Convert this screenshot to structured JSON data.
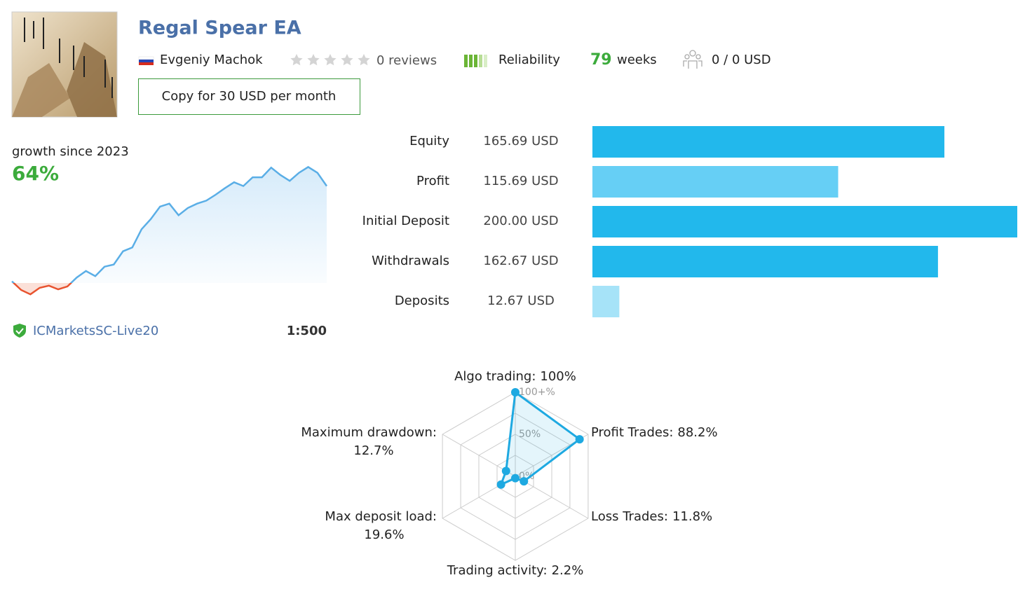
{
  "header": {
    "title": "Regal Spear EA",
    "author": "Evgeniy Machok",
    "reviews": "0 reviews",
    "reliability": "Reliability",
    "weeks_value": "79",
    "weeks_unit": "weeks",
    "subscribers": "0 / 0 USD",
    "button": "Copy for 30 USD per month"
  },
  "growth": {
    "label": "growth since 2023",
    "value": "64%",
    "broker": "ICMarketsSC-Live20",
    "leverage": "1:500"
  },
  "chart_data": [
    {
      "type": "line",
      "values": [
        2.8,
        -2.8,
        -5.6,
        -1.4,
        0,
        -2.4,
        -0.5,
        5.2,
        9.4,
        6.1,
        12.2,
        13.6,
        22.1,
        24.5,
        36.2,
        42.8,
        50.8,
        52.7,
        45.2,
        49.9,
        52.7,
        54.6,
        58.4,
        62.6,
        66.4,
        64,
        69.6,
        69.6,
        75.8,
        71.1,
        67.3,
        72.5,
        76.2,
        72.5,
        64
      ],
      "ylim": [
        -10,
        80
      ],
      "color": "#5aaee6",
      "negative_color": "#e8532f"
    },
    {
      "type": "barh",
      "categories": [
        "Equity",
        "Profit",
        "Initial Deposit",
        "Withdrawals",
        "Deposits"
      ],
      "values": [
        165.69,
        115.69,
        200.0,
        162.67,
        12.67
      ],
      "value_labels": [
        "165.69 USD",
        "115.69 USD",
        "200.00 USD",
        "162.67 USD",
        "12.67 USD"
      ],
      "colors": [
        "#22b8ec",
        "#66cff5",
        "#22b8ec",
        "#22b8ec",
        "#a6e3f8"
      ],
      "xlim": [
        0,
        200
      ]
    },
    {
      "type": "radar",
      "categories": [
        "Algo trading:",
        "Profit Trades:",
        "Loss Trades:",
        "Trading activity:",
        "Max deposit load:",
        "Maximum drawdown:"
      ],
      "values": [
        100,
        88.2,
        11.8,
        2.2,
        19.6,
        12.7
      ],
      "value_labels": [
        "100%",
        "88.2%",
        "11.8%",
        "2.2%",
        "19.6%",
        "12.7%"
      ],
      "ylim": [
        0,
        100
      ],
      "yticks": [
        {
          "value": 0,
          "label": "0%"
        },
        {
          "value": 50,
          "label": "50%"
        },
        {
          "value": 100,
          "label": "100+%"
        }
      ],
      "color": "#1ea9e1"
    }
  ]
}
